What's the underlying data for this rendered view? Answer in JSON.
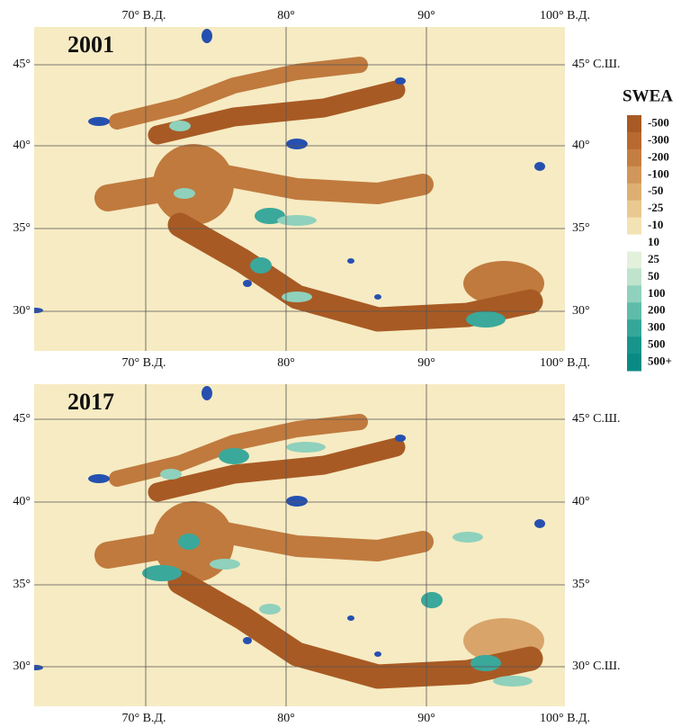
{
  "panels": [
    {
      "year": "2001",
      "top_labels": [
        "70° В.Д.",
        "80°",
        "90°",
        "100° В.Д."
      ],
      "left_labels": [
        "45°",
        "40°",
        "35°",
        "30°"
      ],
      "right_labels": [
        "45° С.Ш.",
        "40°",
        "35°",
        "30°"
      ],
      "bottom_labels": [
        "70° В.Д.",
        "80°",
        "90°",
        "100° В.Д."
      ]
    },
    {
      "year": "2017",
      "left_labels": [
        "45°",
        "40°",
        "35°",
        "30°"
      ],
      "right_labels": [
        "45° С.Ш.",
        "40°",
        "35°",
        "30° С.Ш."
      ],
      "bottom_labels": [
        "70° В.Д.",
        "80°",
        "90°",
        "100° В.Д."
      ]
    }
  ],
  "legend": {
    "title": "SWEA",
    "items": [
      {
        "label": "-500",
        "color": "#a85a24"
      },
      {
        "label": "-300",
        "color": "#b8692f"
      },
      {
        "label": "-200",
        "color": "#c47e42"
      },
      {
        "label": "-100",
        "color": "#d19659"
      },
      {
        "label": "-50",
        "color": "#ddb072"
      },
      {
        "label": "-25",
        "color": "#e9c98f"
      },
      {
        "label": "-10",
        "color": "#f3e2b3"
      },
      {
        "label": "10",
        "color": "#ffffff"
      },
      {
        "label": "25",
        "color": "#e3f1dc"
      },
      {
        "label": "50",
        "color": "#bfe3cc"
      },
      {
        "label": "100",
        "color": "#8fd1bc"
      },
      {
        "label": "200",
        "color": "#5fbcab"
      },
      {
        "label": "300",
        "color": "#35a79a"
      },
      {
        "label": "500",
        "color": "#17958c"
      },
      {
        "label": "500+",
        "color": "#0a8a85"
      }
    ]
  }
}
